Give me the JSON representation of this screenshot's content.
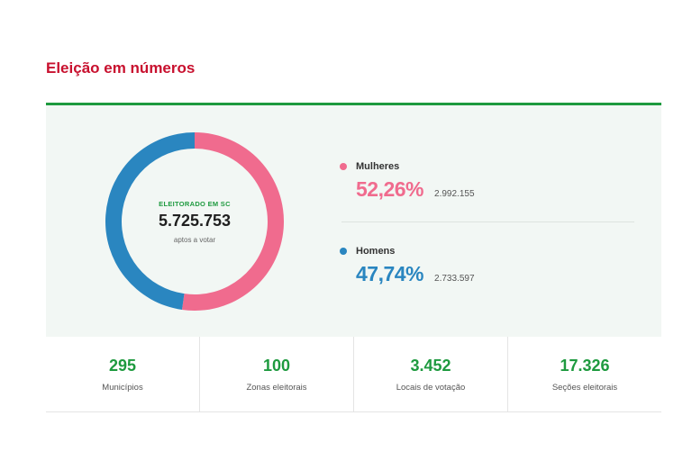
{
  "section": {
    "title": "Eleição em números"
  },
  "electorate": {
    "label": "ELEITORADO EM SC",
    "total": "5.725.753",
    "subtitle": "aptos a votar"
  },
  "breakdown": [
    {
      "name": "Mulheres",
      "percent": "52,26%",
      "count": "2.992.155",
      "share": 52.26,
      "color": "#f06b8e"
    },
    {
      "name": "Homens",
      "percent": "47,74%",
      "count": "2.733.597",
      "share": 47.74,
      "color": "#2a86c0"
    }
  ],
  "stats": [
    {
      "value": "295",
      "label": "Municípios"
    },
    {
      "value": "100",
      "label": "Zonas eleitorais"
    },
    {
      "value": "3.452",
      "label": "Locais de votação"
    },
    {
      "value": "17.326",
      "label": "Seções eleitorais"
    }
  ],
  "colors": {
    "title": "#c8102e",
    "accent": "#1e9a3f",
    "women": "#f06b8e",
    "men": "#2a86c0"
  }
}
